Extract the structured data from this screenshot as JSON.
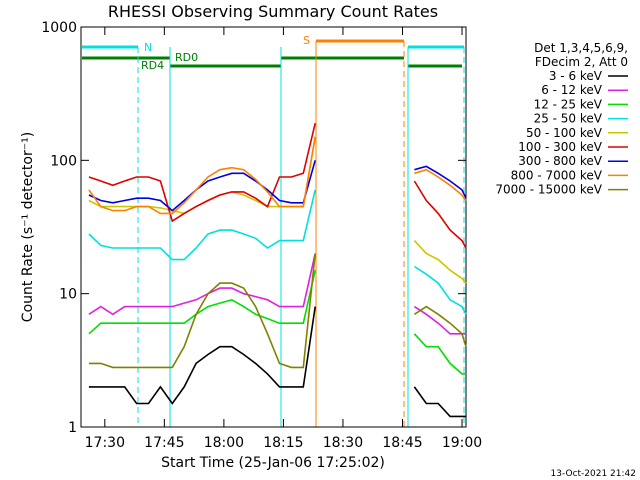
{
  "chart_data": {
    "type": "line",
    "title": "RHESSI Observing Summary Count Rates",
    "x_label": "Start Time (25-Jan-06 17:25:02)",
    "y_label": "Count Rate (s⁻¹ detector⁻¹)",
    "legend_header": [
      "Det 1,3,4,5,6,9,",
      "FDecim 2, Att 0"
    ],
    "annotations": [
      "N",
      "S",
      "RD0",
      "RD4"
    ],
    "timestamp": "13-Oct-2021 21:42",
    "log_y": true,
    "x": [
      "17:26",
      "17:29",
      "17:32",
      "17:35",
      "17:38",
      "17:41",
      "17:44",
      "17:47",
      "17:50",
      "17:53",
      "17:56",
      "17:59",
      "18:02",
      "18:05",
      "18:08",
      "18:11",
      "18:14",
      "18:17",
      "18:20",
      "18:23",
      "18:35",
      "18:48",
      "18:51",
      "18:54",
      "18:57",
      "19:00",
      "19:01"
    ],
    "xlim": [
      "17:24",
      "19:01"
    ],
    "xticks": [
      "17:30",
      "17:45",
      "18:00",
      "18:15",
      "18:30",
      "18:45",
      "19:00"
    ],
    "ylim": [
      1,
      1000
    ],
    "yticks": [
      1,
      10,
      100,
      1000
    ],
    "series": [
      {
        "name": "3 - 6 keV",
        "color": "#000000",
        "values": [
          2,
          2,
          2,
          2,
          1.5,
          1.5,
          2,
          1.5,
          2,
          3,
          3.5,
          4,
          4,
          3.5,
          3,
          2.5,
          2,
          2,
          2,
          8,
          null,
          2,
          1.5,
          1.5,
          1.2,
          1.2,
          1.2
        ]
      },
      {
        "name": "6 - 12 keV",
        "color": "#e020e0",
        "values": [
          7,
          8,
          7,
          8,
          8,
          8,
          8,
          8,
          8.5,
          9,
          10,
          11,
          11,
          10,
          9.5,
          9,
          8,
          8,
          8,
          20,
          null,
          8,
          7,
          6,
          5,
          5,
          5
        ]
      },
      {
        "name": "12 - 25 keV",
        "color": "#00e000",
        "values": [
          5,
          6,
          6,
          6,
          6,
          6,
          6,
          6,
          6,
          7,
          8,
          8.5,
          9,
          8,
          7,
          6.5,
          6,
          6,
          6,
          15,
          null,
          5,
          4,
          4,
          3,
          2.5,
          2.5
        ]
      },
      {
        "name": "25 - 50 keV",
        "color": "#00e0e0",
        "values": [
          28,
          23,
          22,
          22,
          22,
          22,
          22,
          18,
          18,
          22,
          28,
          30,
          30,
          28,
          26,
          22,
          25,
          25,
          25,
          60,
          null,
          16,
          14,
          12,
          9,
          8,
          7
        ]
      },
      {
        "name": "50 - 100 keV",
        "color": "#c8c800",
        "values": [
          50,
          45,
          45,
          45,
          45,
          45,
          44,
          42,
          40,
          45,
          50,
          55,
          58,
          55,
          50,
          45,
          45,
          45,
          45,
          150,
          null,
          25,
          20,
          18,
          15,
          13,
          12
        ]
      },
      {
        "name": "100 - 300 keV",
        "color": "#e00000",
        "values": [
          75,
          70,
          65,
          70,
          75,
          75,
          70,
          35,
          40,
          45,
          50,
          55,
          58,
          58,
          52,
          45,
          75,
          75,
          80,
          190,
          null,
          70,
          50,
          40,
          30,
          25,
          22
        ]
      },
      {
        "name": "300 - 800 keV",
        "color": "#0000e0",
        "values": [
          55,
          50,
          48,
          50,
          52,
          52,
          50,
          42,
          50,
          60,
          70,
          75,
          80,
          80,
          70,
          60,
          50,
          48,
          48,
          100,
          null,
          85,
          90,
          80,
          70,
          60,
          52
        ]
      },
      {
        "name": "800 - 7000 keV",
        "color": "#ff8000",
        "values": [
          60,
          45,
          42,
          42,
          45,
          45,
          40,
          40,
          48,
          60,
          75,
          85,
          88,
          85,
          72,
          58,
          45,
          45,
          45,
          150,
          null,
          80,
          85,
          75,
          65,
          55,
          50
        ]
      },
      {
        "name": "7000 - 15000 keV",
        "color": "#808000",
        "values": [
          3,
          3,
          2.8,
          2.8,
          2.8,
          2.8,
          2.8,
          2.8,
          4,
          7,
          10,
          12,
          12,
          11,
          8,
          5,
          3,
          2.8,
          2.8,
          20,
          null,
          7,
          8,
          7,
          6,
          5,
          4
        ]
      }
    ]
  }
}
